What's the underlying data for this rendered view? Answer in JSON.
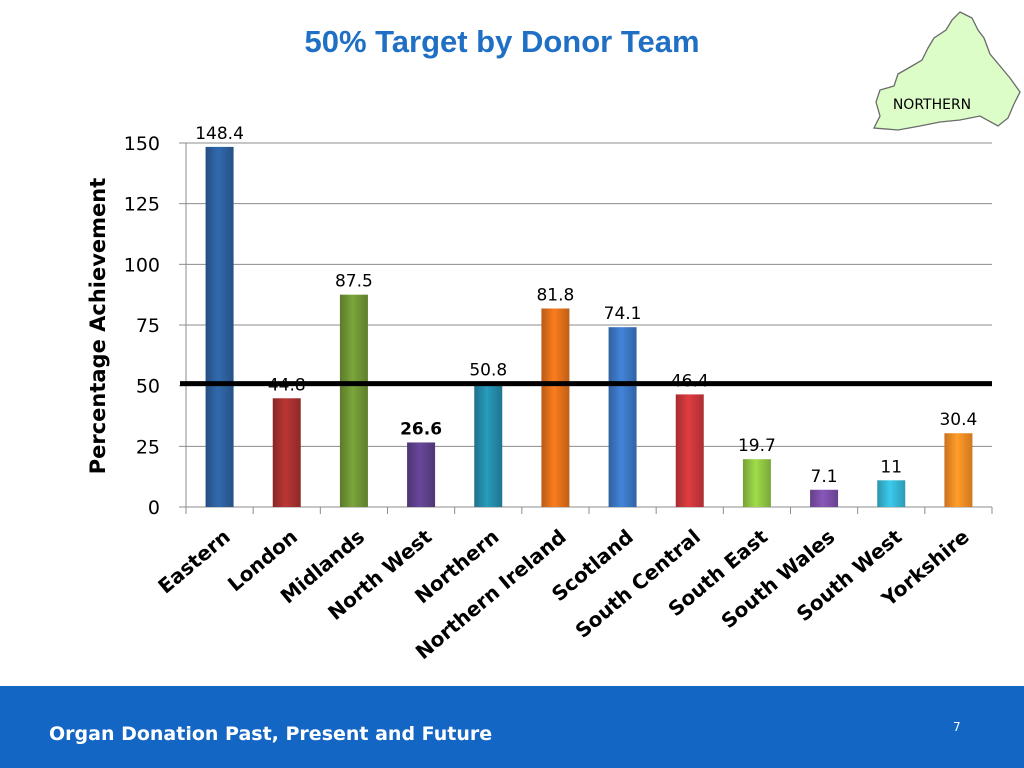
{
  "slide": {
    "title": "50% Target by Donor Team",
    "footer_text": "Organ Donation Past, Present and Future",
    "page_number": "7",
    "map_label": "NORTHERN",
    "colors": {
      "title": "#1f6fc5",
      "footer": "#1466c4",
      "map_fill": "#dcfcc8"
    }
  },
  "chart_data": {
    "type": "bar",
    "title": "",
    "xlabel": "",
    "ylabel": "Percentage Achievement",
    "ylim": [
      0,
      150
    ],
    "yticks": [
      0,
      25,
      50,
      75,
      100,
      125,
      150
    ],
    "grid": true,
    "legend": "none",
    "target_line": 50,
    "categories": [
      "Eastern",
      "London",
      "Midlands",
      "North West",
      "Northern",
      "Northern Ireland",
      "Scotland",
      "South Central",
      "South East",
      "South Wales",
      "South West",
      "Yorkshire"
    ],
    "values": [
      148.4,
      44.8,
      87.5,
      26.6,
      50.8,
      81.8,
      74.1,
      46.4,
      19.7,
      7.1,
      11,
      30.4
    ],
    "value_labels": [
      "148.4",
      "44.8",
      "87.5",
      "26.6",
      "50.8",
      "81.8",
      "74.1",
      "46.4",
      "19.7",
      "7.1",
      "11",
      "30.4"
    ],
    "bold_value_index": 3,
    "bar_colors": [
      "#2d5f9c",
      "#a6302e",
      "#6e9434",
      "#5d3f8a",
      "#248aa8",
      "#e06f1b",
      "#3b76c2",
      "#c9363a",
      "#8fc442",
      "#7a4ea6",
      "#35b5d4",
      "#f58c25"
    ]
  }
}
